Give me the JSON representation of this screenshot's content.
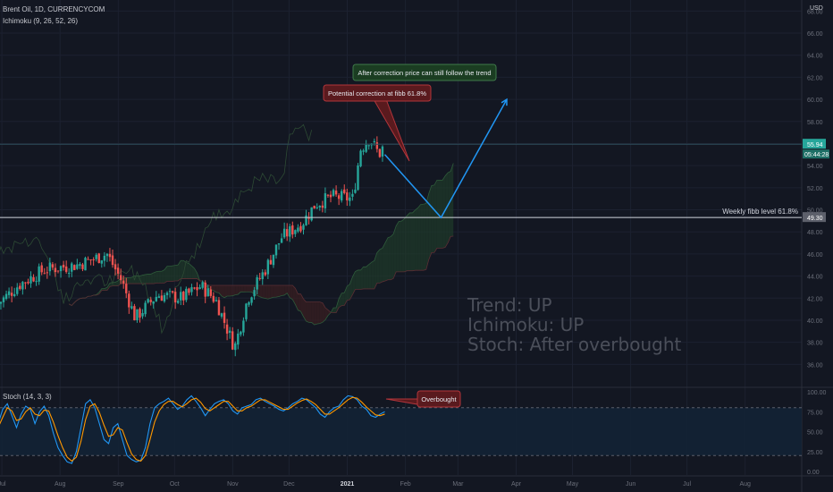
{
  "header": {
    "symbol_line": "Brent Oil, 1D, CURRENCYCOM",
    "indicator_line": "Ichimoku (9, 26, 52, 26)",
    "currency": "USD"
  },
  "colors": {
    "background": "#131722",
    "up_candle": "#26a69a",
    "down_candle": "#ef5350",
    "cloud_bull": "#1f3a2a",
    "cloud_bear": "#3a1f22",
    "arrow": "#2196f3",
    "stoch_k": "#2196f3",
    "stoch_d": "#ff9800",
    "price_tag": "#26a69a",
    "note_red": "#5a1a1e",
    "note_green": "#1b3d22"
  },
  "chart_data": [
    {
      "type": "candlestick",
      "title": "Brent Oil, 1D, CURRENCYCOM",
      "ylabel": "USD",
      "ylim": [
        34,
        69
      ],
      "y_ticks": [
        "36.00",
        "38.00",
        "40.00",
        "42.00",
        "44.00",
        "46.00",
        "48.00",
        "50.00",
        "52.00",
        "54.00",
        "56.00",
        "58.00",
        "60.00",
        "62.00",
        "64.00",
        "66.00",
        "68.00"
      ],
      "x_ticks": [
        "Jul",
        "Aug",
        "Sep",
        "Oct",
        "Nov",
        "Dec",
        "2021",
        "Feb",
        "Mar",
        "Apr",
        "May",
        "Jun",
        "Jul",
        "Aug"
      ],
      "current_price": "55.94",
      "countdown": "05:44:28",
      "fib_level_value": "49.30",
      "fib_level_label": "Weekly fibb level 61.8%",
      "waypoints": [
        [
          "2020-06-29",
          41.5
        ],
        [
          "2020-07-10",
          43.2
        ],
        [
          "2020-07-24",
          44.6
        ],
        [
          "2020-08-10",
          45.0
        ],
        [
          "2020-08-26",
          46.0
        ],
        [
          "2020-09-03",
          43.5
        ],
        [
          "2020-09-10",
          40.2
        ],
        [
          "2020-09-22",
          42.3
        ],
        [
          "2020-10-05",
          42.0
        ],
        [
          "2020-10-15",
          43.1
        ],
        [
          "2020-10-23",
          41.8
        ],
        [
          "2020-11-02",
          37.5
        ],
        [
          "2020-11-09",
          42.0
        ],
        [
          "2020-11-18",
          44.5
        ],
        [
          "2020-11-27",
          47.5
        ],
        [
          "2020-12-08",
          48.8
        ],
        [
          "2020-12-15",
          50.5
        ],
        [
          "2020-12-24",
          51.2
        ],
        [
          "2021-01-04",
          51.0
        ],
        [
          "2021-01-08",
          55.5
        ],
        [
          "2021-01-13",
          56.5
        ],
        [
          "2021-01-18",
          55.0
        ],
        [
          "2021-01-21",
          55.94
        ]
      ],
      "annotations": {
        "note_correction": "Potential correction at fibb 61.8%",
        "note_trend": "After correction price can still follow the trend",
        "projection_points": [
          [
            "2021-01-21",
            55.0
          ],
          [
            "2021-02-20",
            49.3
          ],
          [
            "2021-03-27",
            60.0
          ]
        ],
        "summary_lines": [
          "Trend: UP",
          "Ichimoku: UP",
          "Stoch: After overbought"
        ]
      }
    },
    {
      "type": "line",
      "title": "Stoch (14, 3, 3)",
      "ylim": [
        0,
        100
      ],
      "y_ticks": [
        "0.00",
        "25.00",
        "50.00",
        "75.00",
        "100.00"
      ],
      "bands": [
        20,
        80
      ],
      "series": [
        {
          "name": "%K",
          "values": [
            60,
            78,
            85,
            70,
            55,
            72,
            82,
            78,
            60,
            75,
            82,
            70,
            48,
            30,
            20,
            12,
            10,
            25,
            55,
            85,
            90,
            80,
            60,
            40,
            35,
            55,
            60,
            40,
            20,
            15,
            12,
            14,
            30,
            60,
            80,
            85,
            88,
            92,
            85,
            78,
            82,
            90,
            95,
            88,
            80,
            70,
            78,
            85,
            88,
            90,
            85,
            76,
            72,
            80,
            82,
            84,
            90,
            92,
            88,
            85,
            82,
            78,
            76,
            80,
            85,
            88,
            92,
            90,
            85,
            80,
            72,
            68,
            75,
            80,
            82,
            90,
            95,
            94,
            90,
            82,
            78,
            70,
            68,
            72,
            75
          ]
        },
        {
          "name": "%D",
          "values": [
            55,
            68,
            80,
            76,
            64,
            66,
            75,
            80,
            72,
            70,
            77,
            76,
            62,
            45,
            30,
            18,
            13,
            18,
            38,
            65,
            82,
            85,
            74,
            58,
            44,
            46,
            55,
            52,
            36,
            22,
            15,
            13,
            20,
            40,
            62,
            76,
            84,
            88,
            88,
            84,
            81,
            85,
            90,
            92,
            87,
            79,
            76,
            80,
            84,
            88,
            88,
            82,
            76,
            76,
            80,
            82,
            86,
            90,
            90,
            87,
            84,
            81,
            78,
            78,
            82,
            86,
            89,
            91,
            88,
            84,
            78,
            72,
            72,
            76,
            80,
            85,
            90,
            93,
            92,
            87,
            81,
            76,
            71,
            70,
            72
          ]
        }
      ],
      "annotation": "Overbought"
    }
  ]
}
